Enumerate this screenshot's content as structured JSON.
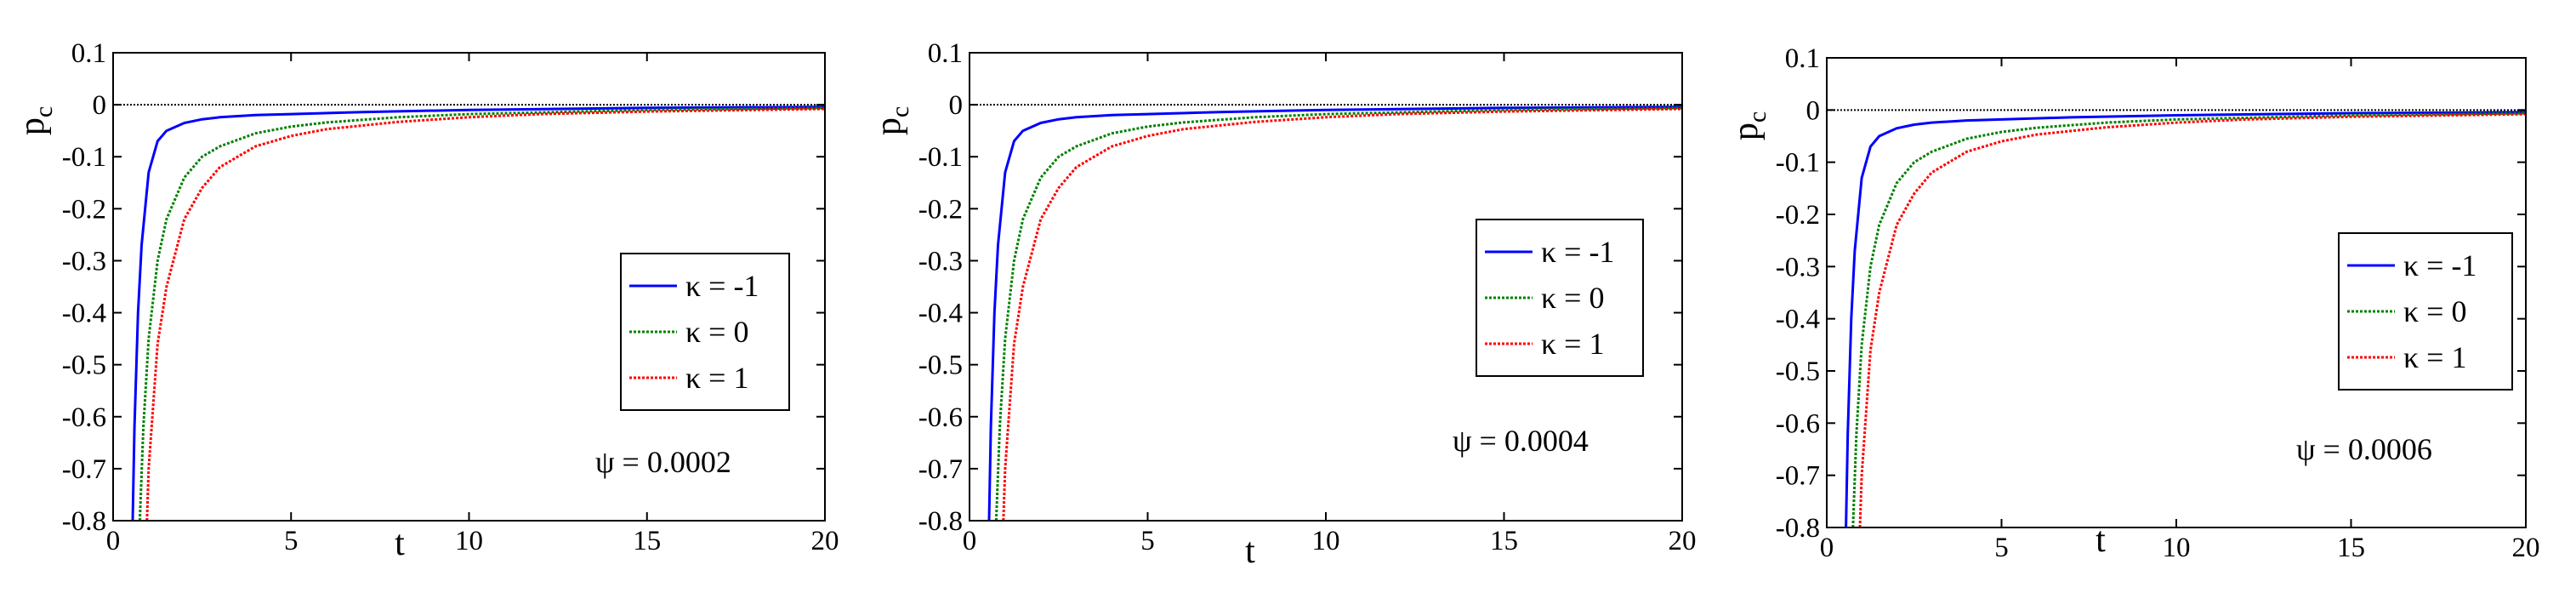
{
  "chart_data": [
    {
      "type": "line",
      "ylabel": "p_c",
      "xlabel": "t",
      "xlim": [
        0,
        20
      ],
      "ylim": [
        -0.8,
        0.1
      ],
      "xticks": [
        "0",
        "5",
        "10",
        "15",
        "20"
      ],
      "yticks": [
        "0.1",
        "0",
        "-0.1",
        "-0.2",
        "-0.3",
        "-0.4",
        "-0.5",
        "-0.6",
        "-0.7",
        "-0.8"
      ],
      "annotation": "ψ = 0.0002",
      "legend_position": "right",
      "reference_line_y": 0,
      "series": [
        {
          "name": "κ = -1",
          "color": "#0000ff",
          "style": "solid",
          "x": [
            0.55,
            0.6,
            0.7,
            0.8,
            1.0,
            1.25,
            1.5,
            2,
            2.5,
            3,
            4,
            5,
            7,
            10,
            15,
            20
          ],
          "y": [
            -0.8,
            -0.62,
            -0.4,
            -0.27,
            -0.13,
            -0.07,
            -0.05,
            -0.035,
            -0.028,
            -0.024,
            -0.02,
            -0.018,
            -0.014,
            -0.01,
            -0.006,
            -0.004
          ]
        },
        {
          "name": "κ = 0",
          "color": "#008000",
          "style": "dotted",
          "x": [
            0.75,
            0.85,
            1.0,
            1.25,
            1.5,
            2,
            2.5,
            3,
            4,
            5,
            6,
            8,
            10,
            15,
            20
          ],
          "y": [
            -0.8,
            -0.62,
            -0.45,
            -0.3,
            -0.22,
            -0.14,
            -0.1,
            -0.08,
            -0.055,
            -0.042,
            -0.034,
            -0.024,
            -0.018,
            -0.01,
            -0.006
          ]
        },
        {
          "name": "κ = 1",
          "color": "#ff0000",
          "style": "dotted",
          "x": [
            0.95,
            1.0,
            1.25,
            1.5,
            2,
            2.5,
            3,
            4,
            5,
            6,
            8,
            10,
            12,
            15,
            20
          ],
          "y": [
            -0.8,
            -0.7,
            -0.46,
            -0.35,
            -0.22,
            -0.16,
            -0.12,
            -0.08,
            -0.06,
            -0.047,
            -0.033,
            -0.024,
            -0.018,
            -0.013,
            -0.008
          ]
        }
      ]
    },
    {
      "type": "line",
      "ylabel": "p_c",
      "xlabel": "t",
      "xlim": [
        0,
        20
      ],
      "ylim": [
        -0.8,
        0.1
      ],
      "xticks": [
        "0",
        "5",
        "10",
        "15",
        "20"
      ],
      "yticks": [
        "0.1",
        "0",
        "-0.1",
        "-0.2",
        "-0.3",
        "-0.4",
        "-0.5",
        "-0.6",
        "-0.7",
        "-0.8"
      ],
      "annotation": "ψ = 0.0004",
      "legend_position": "right",
      "reference_line_y": 0,
      "series": [
        {
          "name": "κ = -1",
          "color": "#0000ff",
          "style": "solid",
          "x": [
            0.55,
            0.6,
            0.7,
            0.8,
            1.0,
            1.25,
            1.5,
            2,
            2.5,
            3,
            4,
            5,
            7,
            10,
            15,
            20
          ],
          "y": [
            -0.8,
            -0.62,
            -0.4,
            -0.27,
            -0.13,
            -0.07,
            -0.05,
            -0.035,
            -0.028,
            -0.024,
            -0.02,
            -0.018,
            -0.014,
            -0.01,
            -0.006,
            -0.004
          ]
        },
        {
          "name": "κ = 0",
          "color": "#008000",
          "style": "dotted",
          "x": [
            0.75,
            0.85,
            1.0,
            1.25,
            1.5,
            2,
            2.5,
            3,
            4,
            5,
            6,
            8,
            10,
            15,
            20
          ],
          "y": [
            -0.8,
            -0.62,
            -0.45,
            -0.3,
            -0.22,
            -0.14,
            -0.1,
            -0.08,
            -0.055,
            -0.042,
            -0.034,
            -0.024,
            -0.018,
            -0.01,
            -0.006
          ]
        },
        {
          "name": "κ = 1",
          "color": "#ff0000",
          "style": "dotted",
          "x": [
            0.95,
            1.0,
            1.25,
            1.5,
            2,
            2.5,
            3,
            4,
            5,
            6,
            8,
            10,
            12,
            15,
            20
          ],
          "y": [
            -0.8,
            -0.7,
            -0.46,
            -0.35,
            -0.22,
            -0.16,
            -0.12,
            -0.08,
            -0.06,
            -0.047,
            -0.033,
            -0.024,
            -0.018,
            -0.013,
            -0.008
          ]
        }
      ]
    },
    {
      "type": "line",
      "ylabel": "p_c",
      "xlabel": "t",
      "xlim": [
        0,
        20
      ],
      "ylim": [
        -0.8,
        0.1
      ],
      "xticks": [
        "0",
        "5",
        "10",
        "15",
        "20"
      ],
      "yticks": [
        "0.1",
        "0",
        "-0.1",
        "-0.2",
        "-0.3",
        "-0.4",
        "-0.5",
        "-0.6",
        "-0.7",
        "-0.8"
      ],
      "annotation": "ψ = 0.0006",
      "legend_position": "right",
      "reference_line_y": 0,
      "series": [
        {
          "name": "κ = -1",
          "color": "#0000ff",
          "style": "solid",
          "x": [
            0.55,
            0.6,
            0.7,
            0.8,
            1.0,
            1.25,
            1.5,
            2,
            2.5,
            3,
            4,
            5,
            7,
            10,
            15,
            20
          ],
          "y": [
            -0.8,
            -0.62,
            -0.4,
            -0.27,
            -0.13,
            -0.07,
            -0.05,
            -0.035,
            -0.028,
            -0.024,
            -0.02,
            -0.018,
            -0.014,
            -0.01,
            -0.006,
            -0.004
          ]
        },
        {
          "name": "κ = 0",
          "color": "#008000",
          "style": "dotted",
          "x": [
            0.75,
            0.85,
            1.0,
            1.25,
            1.5,
            2,
            2.5,
            3,
            4,
            5,
            6,
            8,
            10,
            15,
            20
          ],
          "y": [
            -0.8,
            -0.62,
            -0.45,
            -0.3,
            -0.22,
            -0.14,
            -0.1,
            -0.08,
            -0.055,
            -0.042,
            -0.034,
            -0.024,
            -0.018,
            -0.01,
            -0.006
          ]
        },
        {
          "name": "κ = 1",
          "color": "#ff0000",
          "style": "dotted",
          "x": [
            0.95,
            1.0,
            1.25,
            1.5,
            2,
            2.5,
            3,
            4,
            5,
            6,
            8,
            10,
            12,
            15,
            20
          ],
          "y": [
            -0.8,
            -0.7,
            -0.46,
            -0.35,
            -0.22,
            -0.16,
            -0.12,
            -0.08,
            -0.06,
            -0.047,
            -0.033,
            -0.024,
            -0.018,
            -0.013,
            -0.008
          ]
        }
      ]
    }
  ]
}
